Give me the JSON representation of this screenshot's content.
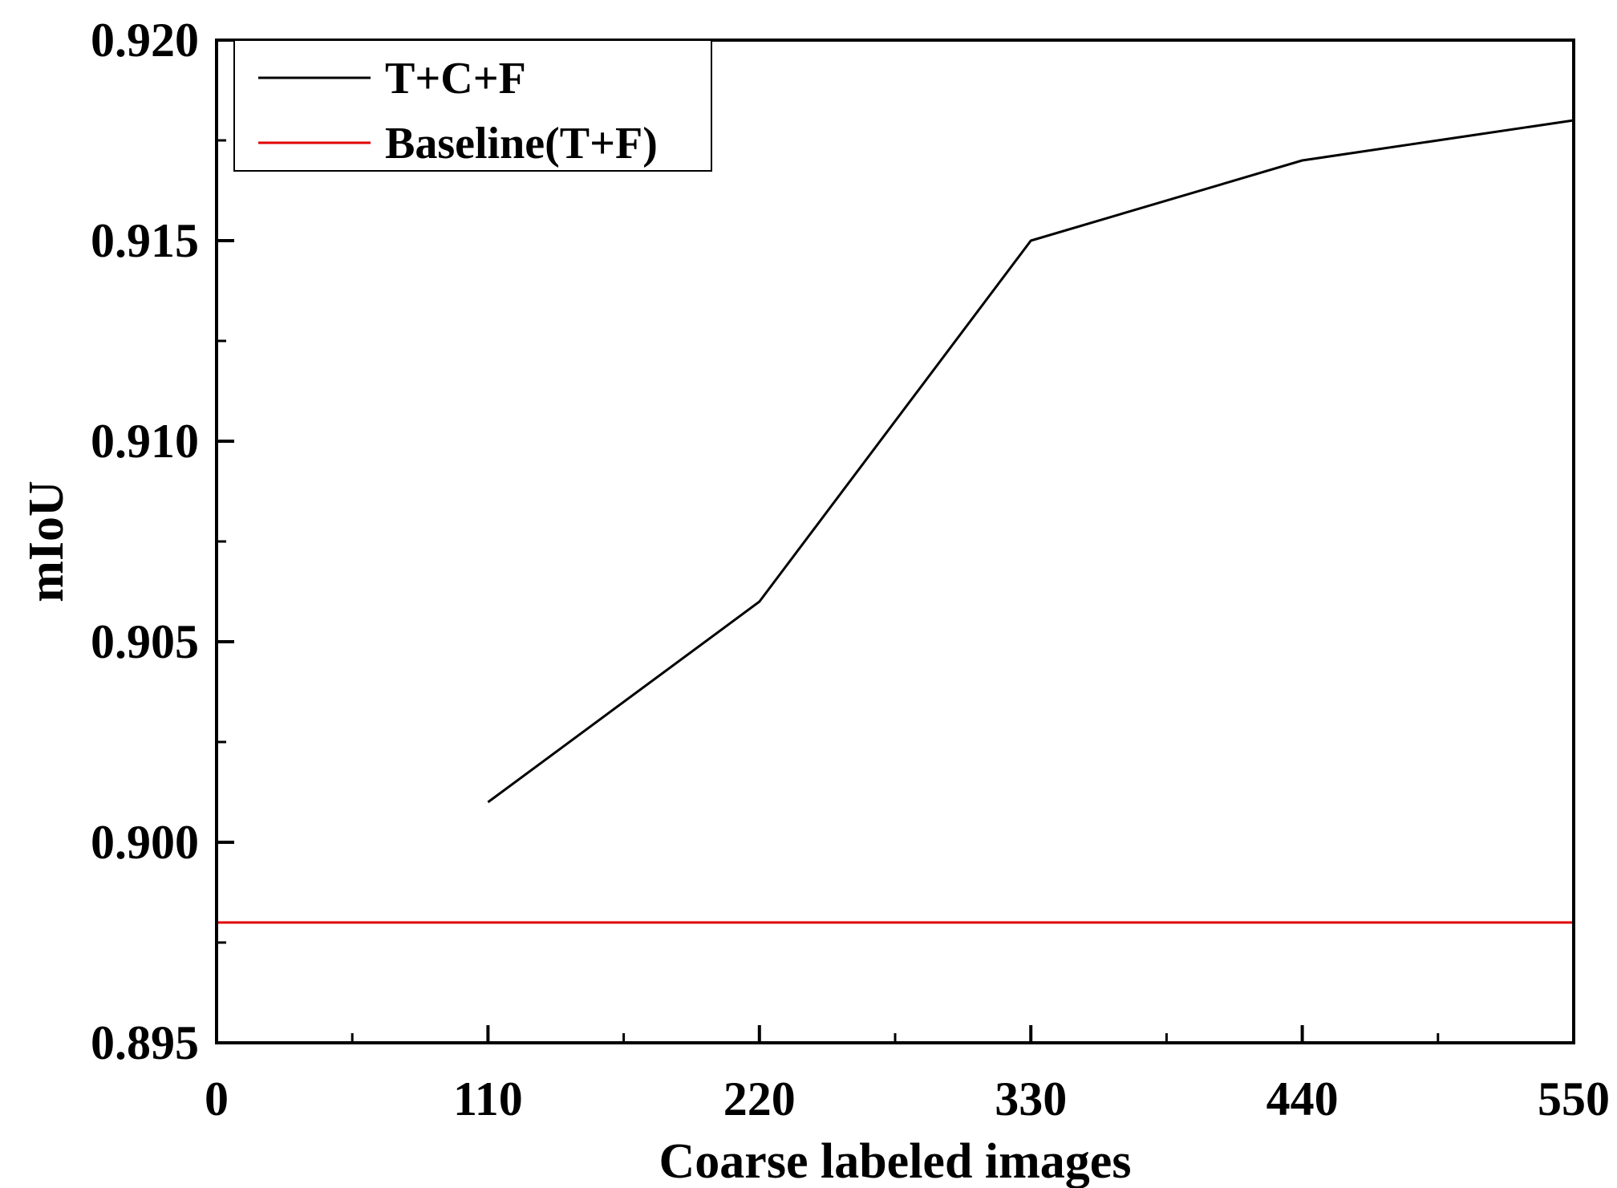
{
  "chart_data": {
    "type": "line",
    "title": "",
    "xlabel": "Coarse labeled images",
    "ylabel": "mIoU",
    "xlim": [
      0,
      550
    ],
    "ylim": [
      0.895,
      0.92
    ],
    "x_ticks": [
      "0",
      "110",
      "220",
      "330",
      "440",
      "550"
    ],
    "y_ticks": [
      "0.895",
      "0.900",
      "0.905",
      "0.910",
      "0.915",
      "0.920"
    ],
    "grid": false,
    "legend_position": "top-left",
    "series": [
      {
        "name": "T+C+F",
        "color": "#000000",
        "x": [
          110,
          220,
          330,
          440,
          550
        ],
        "y": [
          0.901,
          0.906,
          0.915,
          0.917,
          0.918
        ]
      },
      {
        "name": "Baseline(T+F)",
        "color": "#e00000",
        "x": [
          0,
          550
        ],
        "y": [
          0.898,
          0.898
        ]
      }
    ]
  }
}
